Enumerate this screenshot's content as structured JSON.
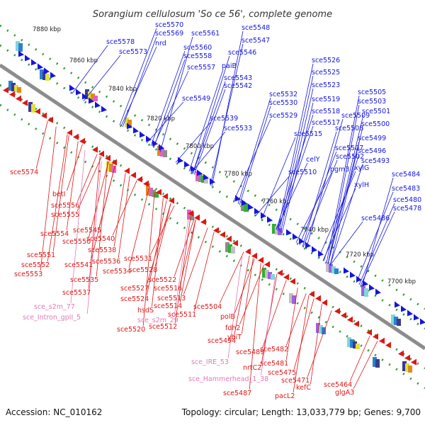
{
  "title": "Sorangium cellulosum 'So ce 56', complete genome",
  "footer": {
    "accession": "Accession: NC_010162",
    "summary": "Topology: circular; Length: 13,033,779 bp; Genes: 9,700"
  },
  "colors": {
    "forward": "#1515e0",
    "reverse": "#e01515",
    "rna": "#e07ab8",
    "tick_dots": "#2d9a2d",
    "axis": "#8a8a8a"
  },
  "scale_ticks": [
    "7880 kbp",
    "7860 kbp",
    "7840 kbp",
    "7820 kbp",
    "7800 kbp",
    "7780 kbp",
    "7760 kbp",
    "7740 kbp",
    "7720 kbp",
    "7700 kbp"
  ],
  "forward_labels": [
    "sce5570",
    "sce5578",
    "sce5569",
    "sce5561",
    "sce5548",
    "sce5573",
    "nrd",
    "sce5560",
    "sce5547",
    "sce5558",
    "sce5546",
    "sce5557",
    "paiB",
    "sce5543",
    "sce5542",
    "sce5549",
    "sce5539",
    "sce5533",
    "sce5532",
    "sce5530",
    "sce5529",
    "sce5526",
    "sce5525",
    "sce5523",
    "sce5519",
    "sce5518",
    "sce5517",
    "sce5515",
    "sce5505",
    "sce5503",
    "sce5509",
    "sce5501",
    "sce5508",
    "sce5500",
    "sce5499",
    "sce5507",
    "sce5496",
    "sce5502",
    "sce5493",
    "celY",
    "xylG",
    "pgm3",
    "sce5510",
    "xylH",
    "sce5484",
    "sce5483",
    "sce5480",
    "sce5478",
    "sce5486"
  ],
  "reverse_labels": [
    "sce5574",
    "betI",
    "sce5556",
    "sce5555",
    "sce5554",
    "sce5545",
    "sce5550",
    "sce5540",
    "sce5538",
    "sce5551",
    "sce5552",
    "sce5541",
    "sce5536",
    "sce5553",
    "sce5534",
    "sce5531",
    "sce5535",
    "sce5528",
    "sce5522",
    "sce5527",
    "sce5537",
    "sce5516",
    "sce5524",
    "sce5513",
    "hsdS",
    "sce5514",
    "sce5511",
    "sce5504",
    "sce5520",
    "sce5512",
    "polB",
    "fdh2",
    "ybiT",
    "sce5494",
    "sce5482",
    "sce5489",
    "sce5481",
    "nrtC2",
    "sce5475",
    "sce5471",
    "kefC",
    "pacL2",
    "sce5464",
    "glgA3",
    "sce5487"
  ],
  "rna_labels": [
    "sce_s2m_77",
    "sce_Intron_gpII_5",
    "sce_s2m_29",
    "sce_IRE_53",
    "sce_Hammerhead_1_38"
  ]
}
